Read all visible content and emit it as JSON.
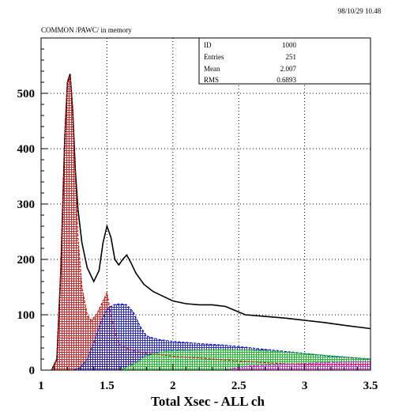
{
  "header": {
    "datetime": "98/10/29   10.48",
    "memory_label": "COMMON /PAWC/ in memory"
  },
  "stats_box": {
    "rows": [
      {
        "label": "ID",
        "value": "1000"
      },
      {
        "label": "Entries",
        "value": "251"
      },
      {
        "label": "Mean",
        "value": "2.007"
      },
      {
        "label": "RMS",
        "value": "0.6893"
      }
    ]
  },
  "colors": {
    "total": "#000000",
    "red": "#d01010",
    "blue": "#1818c8",
    "green": "#20d020",
    "magenta": "#d020d0",
    "grid": "#000000"
  },
  "chart_data": {
    "type": "line",
    "title": "",
    "xlabel": "Total Xsec - ALL ch",
    "ylabel": "",
    "xlim": [
      1,
      3.5
    ],
    "ylim": [
      0,
      600
    ],
    "grid": true,
    "x_ticks": [
      "1",
      "1.5",
      "2",
      "2.5",
      "3",
      "3.5"
    ],
    "y_ticks": [
      "0",
      "100",
      "200",
      "300",
      "400",
      "500"
    ],
    "x_tick_values": [
      1,
      1.5,
      2,
      2.5,
      3,
      3.5
    ],
    "y_tick_values": [
      0,
      100,
      200,
      300,
      400,
      500
    ],
    "series": [
      {
        "color": "#000000",
        "fill": false,
        "points": [
          [
            1.08,
            0
          ],
          [
            1.12,
            20
          ],
          [
            1.15,
            180
          ],
          [
            1.18,
            420
          ],
          [
            1.2,
            520
          ],
          [
            1.22,
            535
          ],
          [
            1.24,
            470
          ],
          [
            1.26,
            360
          ],
          [
            1.28,
            290
          ],
          [
            1.31,
            230
          ],
          [
            1.35,
            185
          ],
          [
            1.4,
            160
          ],
          [
            1.44,
            180
          ],
          [
            1.47,
            230
          ],
          [
            1.5,
            260
          ],
          [
            1.53,
            240
          ],
          [
            1.56,
            200
          ],
          [
            1.59,
            190
          ],
          [
            1.62,
            200
          ],
          [
            1.65,
            208
          ],
          [
            1.68,
            195
          ],
          [
            1.72,
            175
          ],
          [
            1.78,
            155
          ],
          [
            1.85,
            142
          ],
          [
            1.92,
            134
          ],
          [
            2.0,
            125
          ],
          [
            2.1,
            120
          ],
          [
            2.2,
            118
          ],
          [
            2.3,
            118
          ],
          [
            2.4,
            115
          ],
          [
            2.5,
            105
          ],
          [
            2.55,
            100
          ],
          [
            2.7,
            97
          ],
          [
            2.85,
            94
          ],
          [
            3.0,
            90
          ],
          [
            3.15,
            86
          ],
          [
            3.3,
            81
          ],
          [
            3.5,
            75
          ]
        ]
      },
      {
        "color": "#d01010",
        "fill": true,
        "points": [
          [
            1.08,
            0
          ],
          [
            1.12,
            20
          ],
          [
            1.15,
            180
          ],
          [
            1.18,
            420
          ],
          [
            1.2,
            520
          ],
          [
            1.22,
            532
          ],
          [
            1.24,
            470
          ],
          [
            1.26,
            350
          ],
          [
            1.28,
            240
          ],
          [
            1.31,
            150
          ],
          [
            1.35,
            100
          ],
          [
            1.38,
            90
          ],
          [
            1.42,
            100
          ],
          [
            1.47,
            125
          ],
          [
            1.5,
            140
          ],
          [
            1.53,
            100
          ],
          [
            1.57,
            60
          ],
          [
            1.6,
            45
          ],
          [
            1.65,
            40
          ],
          [
            1.7,
            35
          ],
          [
            1.8,
            30
          ],
          [
            1.9,
            28
          ],
          [
            2.0,
            25
          ],
          [
            2.2,
            22
          ],
          [
            2.4,
            18
          ],
          [
            2.6,
            15
          ],
          [
            2.8,
            12
          ],
          [
            3.0,
            10
          ],
          [
            3.5,
            10
          ]
        ]
      },
      {
        "color": "#1818c8",
        "fill": true,
        "points": [
          [
            1.25,
            0
          ],
          [
            1.3,
            5
          ],
          [
            1.35,
            20
          ],
          [
            1.4,
            50
          ],
          [
            1.45,
            85
          ],
          [
            1.5,
            110
          ],
          [
            1.55,
            118
          ],
          [
            1.6,
            120
          ],
          [
            1.65,
            118
          ],
          [
            1.7,
            105
          ],
          [
            1.75,
            80
          ],
          [
            1.8,
            62
          ],
          [
            1.85,
            58
          ],
          [
            1.9,
            55
          ],
          [
            2.0,
            52
          ],
          [
            2.2,
            48
          ],
          [
            2.4,
            45
          ],
          [
            2.6,
            40
          ],
          [
            2.8,
            35
          ],
          [
            3.0,
            30
          ],
          [
            3.2,
            25
          ],
          [
            3.5,
            20
          ]
        ]
      },
      {
        "color": "#20d020",
        "fill": true,
        "points": [
          [
            1.6,
            0
          ],
          [
            1.7,
            10
          ],
          [
            1.8,
            25
          ],
          [
            1.9,
            32
          ],
          [
            2.0,
            35
          ],
          [
            2.2,
            36
          ],
          [
            2.4,
            37
          ],
          [
            2.6,
            36
          ],
          [
            2.8,
            33
          ],
          [
            3.0,
            30
          ],
          [
            3.2,
            26
          ],
          [
            3.4,
            22
          ],
          [
            3.5,
            20
          ]
        ]
      },
      {
        "color": "#d020d0",
        "fill": true,
        "points": [
          [
            2.4,
            0
          ],
          [
            2.5,
            5
          ],
          [
            2.6,
            8
          ],
          [
            2.8,
            10
          ],
          [
            3.0,
            12
          ],
          [
            3.2,
            14
          ],
          [
            3.4,
            15
          ],
          [
            3.5,
            15
          ]
        ]
      }
    ]
  }
}
